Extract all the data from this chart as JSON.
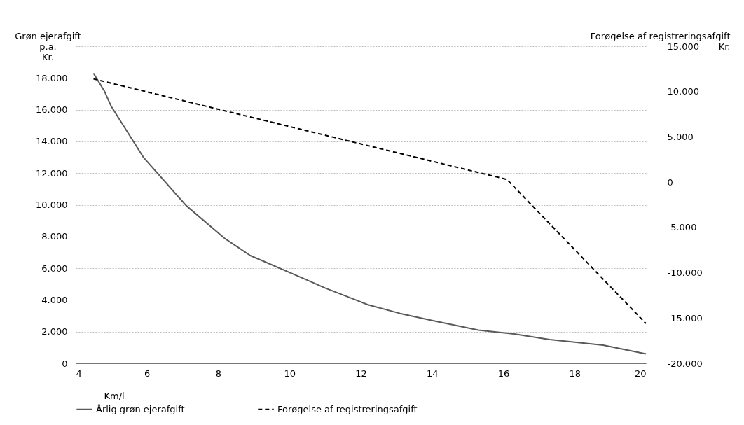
{
  "chart_data": {
    "type": "line",
    "xlabel": "Km/l",
    "ylabel": "Grøn ejerafgift\np.a.\nKr.",
    "y2label": "Forøgelse af registreringsafgift\nKr.",
    "xlim": [
      4,
      20
    ],
    "xticks": [
      4,
      6,
      8,
      10,
      12,
      14,
      16,
      18,
      20
    ],
    "ylim": [
      0,
      20000
    ],
    "yticks": [
      0,
      {
        "value": 2000,
        "label": "2.000"
      },
      {
        "value": 4000,
        "label": "4.000"
      },
      {
        "value": 6000,
        "label": "6.000"
      },
      {
        "value": 8000,
        "label": "8.000"
      },
      {
        "value": 10000,
        "label": "10.000"
      },
      {
        "value": 12000,
        "label": "12.000"
      },
      {
        "value": 14000,
        "label": "14.000"
      },
      {
        "value": 16000,
        "label": "16.000"
      },
      {
        "value": 18000,
        "label": "18.000"
      }
    ],
    "y2lim": [
      -20000,
      15000
    ],
    "y2ticks": [
      {
        "value": -20000,
        "label": "-20.000"
      },
      {
        "value": -15000,
        "label": "-15.000"
      },
      {
        "value": -10000,
        "label": "-10.000"
      },
      {
        "value": -5000,
        "label": "-5.000"
      },
      0,
      {
        "value": 5000,
        "label": "5.000"
      },
      {
        "value": 10000,
        "label": "10.000"
      },
      {
        "value": 15000,
        "label": "15.000"
      }
    ],
    "grid": "y",
    "legend": "bottom",
    "series": [
      {
        "name": "Årlig grøn ejerafgift",
        "color": "#595959",
        "line_style": "solid",
        "x": [
          4.5,
          4.8,
          5.0,
          5.9,
          7.1,
          8.2,
          8.9,
          10.5,
          11.0,
          12.2,
          13.1,
          14.0,
          15.3,
          16.3,
          17.3,
          18.8,
          20.0
        ],
        "values": [
          18300,
          17200,
          16200,
          13000,
          9950,
          7850,
          6800,
          5250,
          4750,
          3700,
          3150,
          2700,
          2100,
          1850,
          1500,
          1150,
          600
        ]
      },
      {
        "name": "Forøgelse af registreringsafgift",
        "color": "#000000",
        "line_style": "dashed",
        "axis": "y2",
        "x": [
          4.5,
          16.1,
          20.0
        ],
        "values": [
          11400,
          300,
          -15600
        ]
      }
    ]
  }
}
